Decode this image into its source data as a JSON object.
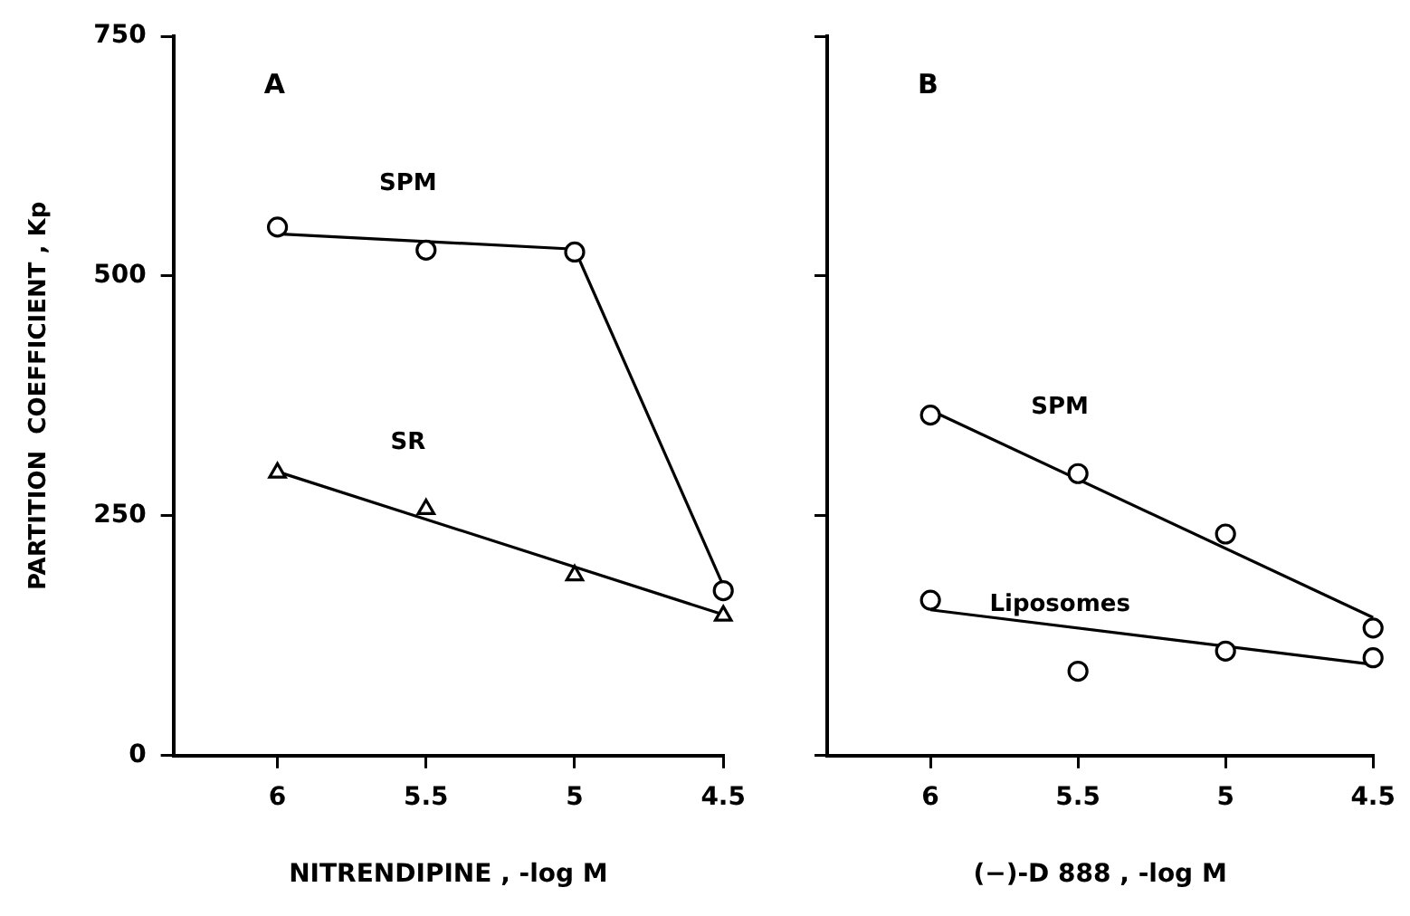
{
  "chart_data": [
    {
      "type": "scatter",
      "title": "A",
      "xlabel": "NITRENDIPINE , -log M",
      "ylabel": "PARTITION  COEFFICIENT , Kp",
      "xlim": [
        6.35,
        4.5
      ],
      "xticks": [
        6,
        5.5,
        5,
        4.5
      ],
      "ylim": [
        0,
        750
      ],
      "yticks": [
        0,
        250,
        500,
        750
      ],
      "grid": false,
      "legend": false,
      "series": [
        {
          "name": "SPM",
          "type": "scatter",
          "marker": "circle",
          "color": "#000000",
          "x": [
            6,
            5.5,
            5,
            4.5
          ],
          "values": [
            551,
            527,
            525,
            172
          ]
        },
        {
          "type": "line",
          "marker": "none",
          "color": "#000000",
          "x": [
            6,
            5,
            4.5
          ],
          "values": [
            544,
            528,
            177
          ]
        },
        {
          "name": "SR",
          "type": "scatter",
          "marker": "triangle",
          "color": "#000000",
          "x": [
            6,
            5.5,
            5,
            4.5
          ],
          "values": [
            295,
            257,
            188,
            146
          ]
        },
        {
          "type": "line",
          "marker": "none",
          "color": "#000000",
          "x": [
            6,
            4.5
          ],
          "values": [
            296,
            147
          ]
        }
      ]
    },
    {
      "type": "scatter",
      "title": "B",
      "xlabel": "(−)-D 888 , -log M",
      "xlim": [
        6.35,
        4.5
      ],
      "xticks": [
        6,
        5.5,
        5,
        4.5
      ],
      "ylim": [
        0,
        750
      ],
      "yticks": [
        0,
        250,
        500,
        750
      ],
      "tick_labels": "x",
      "grid": false,
      "legend": false,
      "series": [
        {
          "name": "SPM",
          "type": "scatter",
          "marker": "circle",
          "color": "#000000",
          "x": [
            6,
            5.5,
            5,
            4.5
          ],
          "values": [
            355,
            294,
            231,
            133
          ]
        },
        {
          "type": "line",
          "marker": "none",
          "color": "#000000",
          "x": [
            6,
            4.5
          ],
          "values": [
            360,
            144
          ]
        },
        {
          "name": "Liposomes",
          "type": "scatter",
          "marker": "circle",
          "color": "#000000",
          "x": [
            6,
            5.5,
            5,
            4.5
          ],
          "values": [
            162,
            88,
            109,
            102
          ]
        },
        {
          "type": "line",
          "marker": "none",
          "color": "#000000",
          "x": [
            6,
            4.5
          ],
          "values": [
            152,
            95
          ]
        }
      ]
    }
  ]
}
